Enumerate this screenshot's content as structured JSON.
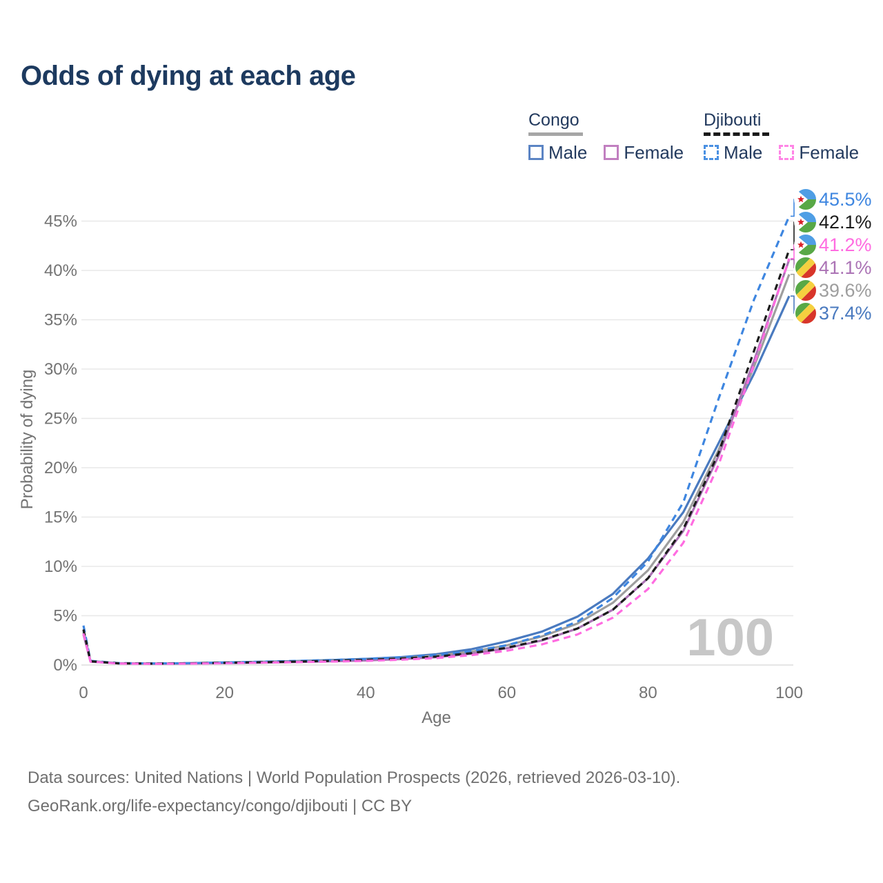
{
  "title": "Odds of dying at each age",
  "legend": {
    "groups": [
      {
        "name": "Congo",
        "style": "solid",
        "items": [
          {
            "label": "Male",
            "color": "#4a7abf"
          },
          {
            "label": "Female",
            "color": "#ab73b5"
          }
        ]
      },
      {
        "name": "Djibouti",
        "style": "dashed",
        "items": [
          {
            "label": "Male",
            "color": "#3e86e0"
          },
          {
            "label": "Female",
            "color": "#ff6ce1"
          }
        ]
      }
    ]
  },
  "footer": {
    "line1": "Data sources: United Nations | World Population Prospects (2026, retrieved 2026-03-10).",
    "line2": "GeoRank.org/life-expectancy/congo/djibouti | CC BY"
  },
  "chart_data": {
    "type": "line",
    "title": "Odds of dying at each age",
    "xlabel": "Age",
    "ylabel": "Probability of dying",
    "xlim": [
      0,
      100
    ],
    "ylim": [
      0,
      47
    ],
    "x_ticks": [
      0,
      20,
      40,
      60,
      80,
      100
    ],
    "y_ticks_percent": [
      0,
      5,
      10,
      15,
      20,
      25,
      30,
      35,
      40,
      45
    ],
    "grid": true,
    "legend_position": "top-right",
    "hover_age_watermark": "100",
    "x": [
      0,
      1,
      5,
      10,
      15,
      20,
      25,
      30,
      35,
      40,
      45,
      50,
      55,
      60,
      65,
      70,
      75,
      80,
      85,
      90,
      95,
      100
    ],
    "series": [
      {
        "name": "Djibouti Male",
        "country": "Djibouti",
        "sex": "Male",
        "flag": "djibouti",
        "color": "#3e86e0",
        "dash": "10 7",
        "end_label": "45.5%",
        "end_value": 45.5,
        "values": [
          4.0,
          0.42,
          0.19,
          0.16,
          0.19,
          0.26,
          0.33,
          0.41,
          0.5,
          0.62,
          0.78,
          1.0,
          1.4,
          2.0,
          3.0,
          4.4,
          6.8,
          10.5,
          16.5,
          27.0,
          37.0,
          45.5
        ]
      },
      {
        "name": "Djibouti Total",
        "country": "Djibouti",
        "sex": "Both",
        "flag": "djibouti",
        "color": "#1c1c1c",
        "dash": "9 7",
        "end_label": "42.1%",
        "end_value": 42.1,
        "values": [
          3.6,
          0.38,
          0.17,
          0.14,
          0.17,
          0.22,
          0.28,
          0.34,
          0.42,
          0.52,
          0.66,
          0.85,
          1.2,
          1.75,
          2.55,
          3.7,
          5.6,
          8.8,
          13.8,
          21.5,
          31.8,
          42.1
        ]
      },
      {
        "name": "Djibouti Female",
        "country": "Djibouti",
        "sex": "Female",
        "flag": "djibouti",
        "color": "#ff6ce1",
        "dash": "10 7",
        "end_label": "41.2%",
        "end_value": 41.2,
        "values": [
          3.2,
          0.34,
          0.15,
          0.12,
          0.14,
          0.18,
          0.23,
          0.28,
          0.34,
          0.42,
          0.54,
          0.7,
          1.0,
          1.45,
          2.1,
          3.1,
          4.8,
          7.7,
          12.4,
          20.3,
          30.4,
          41.2
        ]
      },
      {
        "name": "Congo Female",
        "country": "Congo",
        "sex": "Female",
        "flag": "congo",
        "color": "#ab73b5",
        "dash": null,
        "end_label": "41.1%",
        "end_value": 41.1,
        "values": [
          3.1,
          0.34,
          0.16,
          0.13,
          0.15,
          0.19,
          0.24,
          0.3,
          0.37,
          0.46,
          0.6,
          0.8,
          1.15,
          1.7,
          2.5,
          3.7,
          5.6,
          8.8,
          13.6,
          21.2,
          30.8,
          41.1
        ]
      },
      {
        "name": "Congo Total",
        "country": "Congo",
        "sex": "Both",
        "flag": "congo",
        "color": "#9e9e9e",
        "dash": null,
        "end_label": "39.6%",
        "end_value": 39.6,
        "values": [
          3.3,
          0.37,
          0.17,
          0.14,
          0.17,
          0.22,
          0.28,
          0.35,
          0.43,
          0.54,
          0.7,
          0.95,
          1.35,
          2.0,
          2.9,
          4.2,
          6.3,
          9.6,
          14.5,
          21.8,
          30.2,
          39.6
        ]
      },
      {
        "name": "Congo Male",
        "country": "Congo",
        "sex": "Male",
        "flag": "congo",
        "color": "#4a7abf",
        "dash": null,
        "end_label": "37.4%",
        "end_value": 37.4,
        "values": [
          3.5,
          0.4,
          0.18,
          0.15,
          0.18,
          0.25,
          0.32,
          0.4,
          0.5,
          0.62,
          0.8,
          1.1,
          1.6,
          2.4,
          3.4,
          4.9,
          7.2,
          10.8,
          15.5,
          22.5,
          29.5,
          37.4
        ]
      }
    ]
  }
}
